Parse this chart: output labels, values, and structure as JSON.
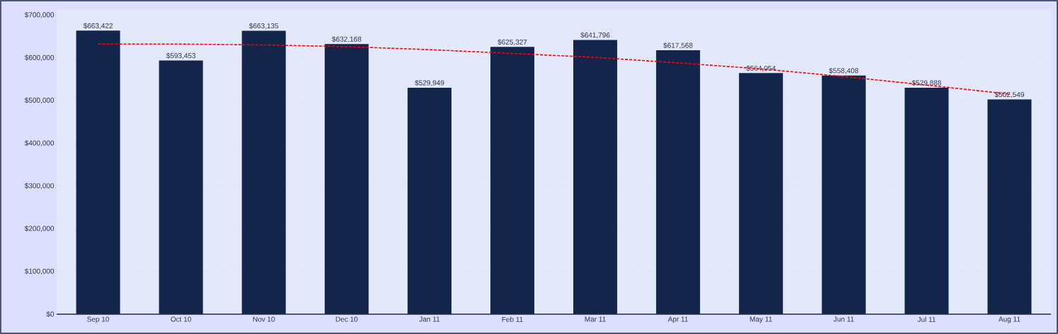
{
  "chart_data": {
    "type": "bar",
    "categories": [
      "Sep 10",
      "Oct 10",
      "Nov 10",
      "Dec 10",
      "Jan 11",
      "Feb 11",
      "Mar 11",
      "Apr 11",
      "May 11",
      "Jun 11",
      "Jul 11",
      "Aug 11"
    ],
    "series": [
      {
        "color": "#13254a",
        "values": [
          663422,
          593453,
          663135,
          632168,
          529949,
          625327,
          641796,
          617568,
          564054,
          558408,
          529888,
          502549
        ],
        "value_labels": [
          "$663,422",
          "$593,453",
          "$663,135",
          "$632,168",
          "$529,949",
          "$625,327",
          "$641,796",
          "$617,568",
          "$564,054",
          "$558,408",
          "$529,888",
          "$502,549"
        ]
      },
      {
        "type": "line",
        "color": "#ff0000",
        "line_style": "dashed",
        "marker": "none",
        "values": [
          632000,
          632000,
          630000,
          626000,
          619000,
          610000,
          601000,
          588000,
          574000,
          556000,
          536000,
          515000
        ]
      }
    ],
    "ylim": [
      0,
      712000
    ],
    "yticks": [
      {
        "value": 0,
        "label": "$0"
      },
      {
        "value": 100000,
        "label": "$100,000"
      },
      {
        "value": 200000,
        "label": "$200,000"
      },
      {
        "value": 300000,
        "label": "$300,000"
      },
      {
        "value": 400000,
        "label": "$400,000"
      },
      {
        "value": 500000,
        "label": "$500,000"
      },
      {
        "value": 600000,
        "label": "$600,000"
      },
      {
        "value": 700000,
        "label": "$700,000"
      }
    ],
    "grid": "y"
  }
}
